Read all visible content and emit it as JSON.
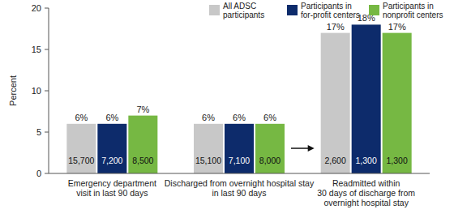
{
  "chart_data": {
    "type": "bar",
    "y_label": "Percent",
    "categories": [
      "Emergency department\nvisit in last 90 days",
      "Discharged from overnight hospital stay\nin last 90 days",
      "Readmitted within\n30 days of discharge from\novernight hospital stay"
    ],
    "series": [
      {
        "name": "All ADSC\nparticipants",
        "color": "#c8c8c8",
        "values": [
          6,
          6,
          17
        ],
        "value_labels": [
          "6%",
          "6%",
          "17%"
        ],
        "counts": [
          15700,
          15100,
          2600
        ]
      },
      {
        "name": "Participants in\nfor-profit centers",
        "color": "#0d2b6b",
        "values": [
          6,
          6,
          18
        ],
        "value_labels": [
          "6%",
          "6%",
          "18%"
        ],
        "counts": [
          7200,
          7100,
          1300
        ]
      },
      {
        "name": "Participants in\nnonprofit centers",
        "color": "#76b843",
        "values": [
          7,
          6,
          17
        ],
        "value_labels": [
          "7%",
          "6%",
          "17%"
        ],
        "counts": [
          8500,
          8000,
          1300
        ]
      }
    ],
    "ylim": [
      0,
      20
    ],
    "yticks": [
      0,
      5,
      10,
      15,
      20
    ],
    "grid": false,
    "legend": "top-right",
    "data_labels": true
  }
}
